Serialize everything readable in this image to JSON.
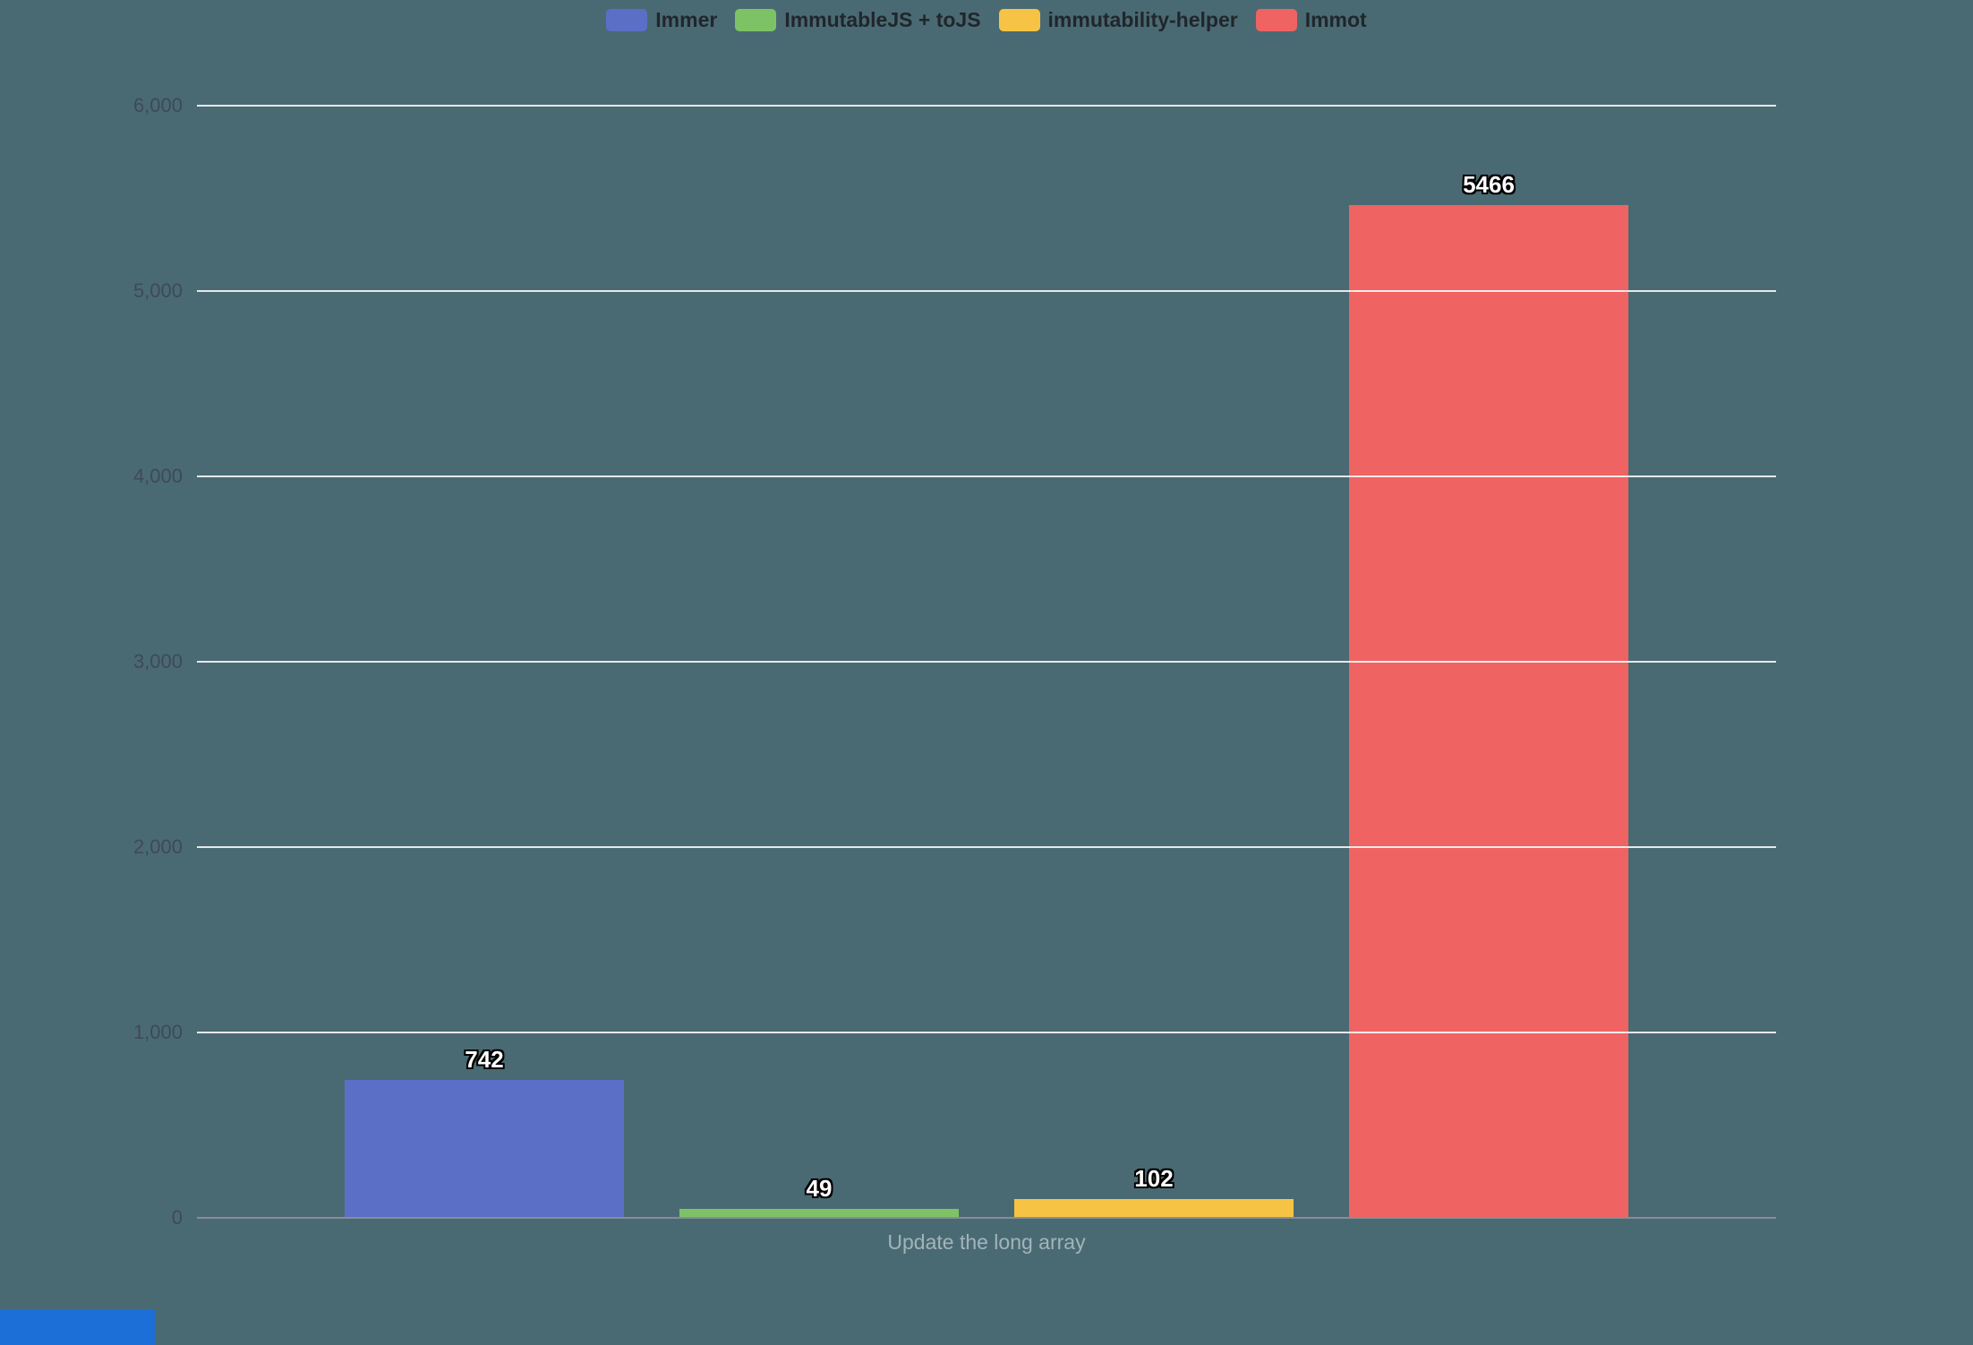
{
  "chart_data": {
    "type": "bar",
    "title": "",
    "categories": [
      "Update the long array"
    ],
    "series": [
      {
        "name": "Immer",
        "color": "#5b6fc7",
        "values": [
          742
        ]
      },
      {
        "name": "ImmutableJS + toJS",
        "color": "#7dc365",
        "values": [
          49
        ]
      },
      {
        "name": "immutability-helper",
        "color": "#f6c344",
        "values": [
          102
        ]
      },
      {
        "name": "Immot",
        "color": "#ef6363",
        "values": [
          5466
        ]
      }
    ],
    "xlabel": "Update the long array",
    "ylabel": "",
    "ylim": [
      0,
      6000
    ],
    "yticks": [
      0,
      1000,
      2000,
      3000,
      4000,
      5000,
      6000
    ],
    "ytick_labels": [
      "0",
      "1,000",
      "2,000",
      "3,000",
      "4,000",
      "5,000",
      "6,000"
    ],
    "legend_position": "top",
    "grid": true,
    "value_labels": true,
    "background_color": "#4a6a73"
  },
  "misc": {
    "bottom_left_fragment_color": "#1b6fd6"
  }
}
